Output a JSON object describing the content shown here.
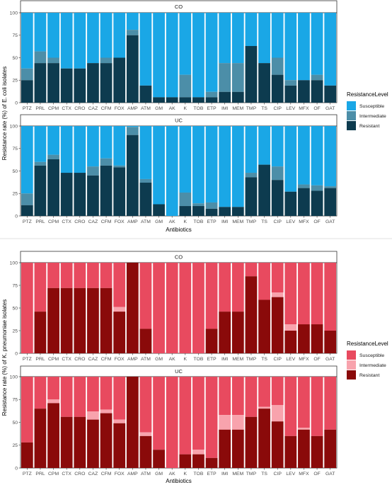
{
  "chart_data": [
    {
      "type": "bar",
      "stacked": true,
      "ylabel": "Resistance rate (%) of E. coli isolates",
      "xlabel": "Antibiotics",
      "ylim": [
        0,
        100
      ],
      "yticks": [
        0,
        25,
        50,
        75,
        100
      ],
      "legend_title": "ResistanceLevel",
      "legend_position": "right",
      "series_names": [
        "Susceptible",
        "Intermediate",
        "Resistant"
      ],
      "colors": {
        "Susceptible": "#1aa7e6",
        "Intermediate": "#4c8ea8",
        "Resistant": "#0d3b4f"
      },
      "categories": [
        "PTZ",
        "PRL",
        "CPM",
        "CTX",
        "CRO",
        "CAZ",
        "CFM",
        "FOX",
        "AMP",
        "ATM",
        "GM",
        "AK",
        "K",
        "TOB",
        "ETP",
        "IMI",
        "MEM",
        "TMP",
        "TS",
        "CIP",
        "LEV",
        "MFX",
        "OF",
        "GAT"
      ],
      "panels": [
        {
          "label": "CO",
          "resistant": [
            25,
            44,
            44,
            38,
            38,
            44,
            44,
            50,
            75,
            19,
            6,
            6,
            6,
            6,
            6,
            12,
            12,
            63,
            44,
            31,
            19,
            25,
            25,
            19
          ],
          "intermediate": [
            13,
            13,
            6,
            0,
            0,
            0,
            6,
            0,
            6,
            0,
            0,
            0,
            25,
            0,
            6,
            32,
            32,
            0,
            0,
            19,
            6,
            0,
            6,
            0
          ]
        },
        {
          "label": "UC",
          "resistant": [
            12,
            56,
            63,
            48,
            48,
            45,
            56,
            54,
            90,
            37,
            13,
            0,
            11,
            11,
            8,
            10,
            10,
            43,
            57,
            40,
            27,
            31,
            28,
            31
          ],
          "intermediate": [
            13,
            4,
            5,
            0,
            0,
            10,
            8,
            2,
            9,
            4,
            0,
            0,
            15,
            3,
            7,
            0,
            0,
            5,
            0,
            15,
            0,
            4,
            6,
            2
          ]
        }
      ]
    },
    {
      "type": "bar",
      "stacked": true,
      "ylabel": "Resistance rate (%) of K. pneumoniae isolates",
      "xlabel": "Antibiotics",
      "ylim": [
        0,
        100
      ],
      "yticks": [
        0,
        25,
        50,
        75,
        100
      ],
      "legend_title": "ResistanceLevel",
      "legend_position": "right",
      "series_names": [
        "Susceptible",
        "Intermediate",
        "Resistant"
      ],
      "colors": {
        "Susceptible": "#e84a5f",
        "Intermediate": "#f8a3ad",
        "Resistant": "#8a0a0a"
      },
      "categories": [
        "PTZ",
        "PRL",
        "CPM",
        "CTX",
        "CRO",
        "CAZ",
        "CFM",
        "FOX",
        "AMP",
        "ATM",
        "GM",
        "AK",
        "K",
        "TOB",
        "ETP",
        "IMI",
        "MEM",
        "TMP",
        "TS",
        "CIP",
        "LEV",
        "MFX",
        "OF",
        "GAT"
      ],
      "panels": [
        {
          "label": "CO",
          "resistant": [
            0,
            46,
            72,
            72,
            72,
            72,
            72,
            46,
            100,
            27,
            0,
            0,
            0,
            0,
            27,
            46,
            46,
            85,
            59,
            62,
            25,
            32,
            32,
            25
          ],
          "intermediate": [
            0,
            0,
            0,
            0,
            0,
            0,
            0,
            5,
            0,
            0,
            0,
            0,
            0,
            0,
            0,
            0,
            0,
            0,
            0,
            5,
            7,
            0,
            0,
            0
          ]
        },
        {
          "label": "UC",
          "resistant": [
            28,
            65,
            71,
            56,
            56,
            53,
            60,
            49,
            100,
            35,
            20,
            0,
            15,
            15,
            11,
            42,
            42,
            56,
            65,
            51,
            35,
            42,
            35,
            42
          ],
          "intermediate": [
            0,
            0,
            4,
            0,
            0,
            9,
            4,
            4,
            0,
            4,
            0,
            0,
            0,
            5,
            0,
            16,
            16,
            0,
            2,
            18,
            0,
            2,
            0,
            0
          ]
        }
      ]
    }
  ]
}
